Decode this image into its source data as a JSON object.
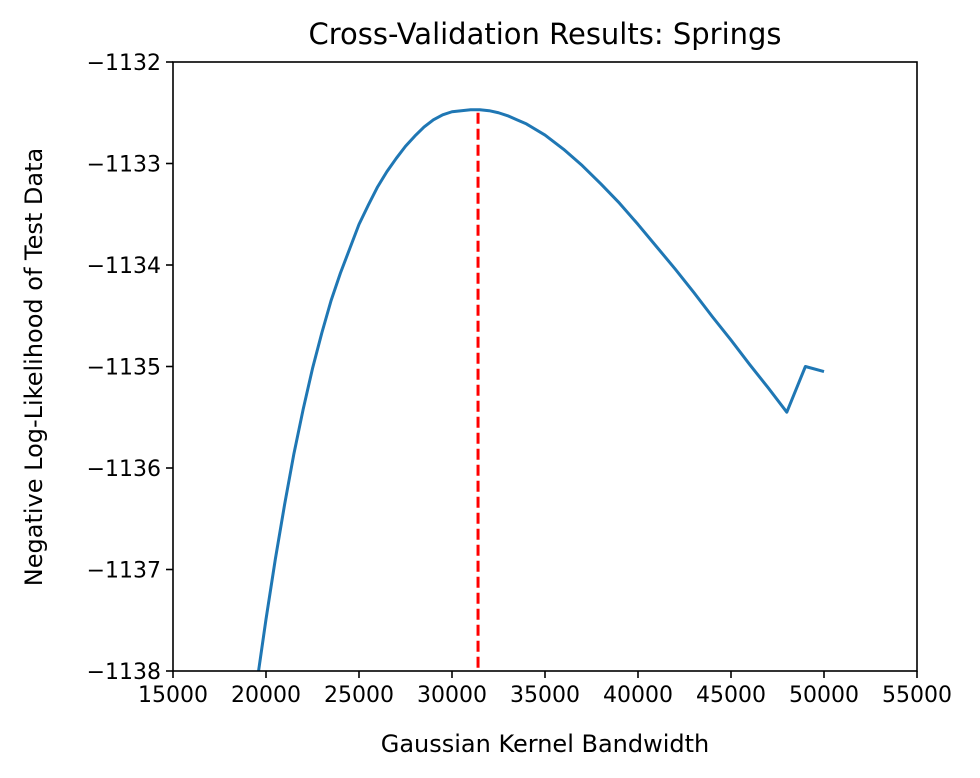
{
  "chart_data": {
    "type": "line",
    "title": "Cross-Validation Results: Springs",
    "xlabel": "Gaussian Kernel Bandwidth",
    "ylabel": "Negative Log-Likelihood of Test Data",
    "xlim": [
      15000,
      55000
    ],
    "ylim": [
      -1138,
      -1132
    ],
    "xticks": [
      15000,
      20000,
      25000,
      30000,
      35000,
      40000,
      45000,
      50000,
      55000
    ],
    "xtick_labels": [
      "15000",
      "20000",
      "25000",
      "30000",
      "35000",
      "40000",
      "45000",
      "50000",
      "55000"
    ],
    "yticks": [
      -1138,
      -1137,
      -1136,
      -1135,
      -1134,
      -1133,
      -1132
    ],
    "ytick_labels": [
      "−1138",
      "−1137",
      "−1136",
      "−1135",
      "−1134",
      "−1133",
      "−1132"
    ],
    "grid": false,
    "series": [
      {
        "color": "#1f77b4",
        "x": [
          19600,
          20000,
          20500,
          21000,
          21500,
          22000,
          22500,
          23000,
          23500,
          24000,
          24500,
          25000,
          25500,
          26000,
          26500,
          27000,
          27500,
          28000,
          28500,
          29000,
          29500,
          30000,
          30500,
          31000,
          31500,
          32000,
          32500,
          33000,
          33500,
          34000,
          35000,
          36000,
          37000,
          38000,
          39000,
          40000,
          41000,
          42000,
          43000,
          44000,
          45000,
          46000,
          47000,
          48000,
          49000,
          50000
        ],
        "y": [
          -1138.0,
          -1137.49,
          -1136.9,
          -1136.36,
          -1135.86,
          -1135.42,
          -1135.02,
          -1134.67,
          -1134.35,
          -1134.08,
          -1133.84,
          -1133.6,
          -1133.41,
          -1133.23,
          -1133.08,
          -1132.95,
          -1132.83,
          -1132.73,
          -1132.64,
          -1132.57,
          -1132.52,
          -1132.49,
          -1132.48,
          -1132.47,
          -1132.47,
          -1132.48,
          -1132.5,
          -1132.53,
          -1132.57,
          -1132.61,
          -1132.72,
          -1132.86,
          -1133.02,
          -1133.2,
          -1133.39,
          -1133.6,
          -1133.82,
          -1134.04,
          -1134.27,
          -1134.51,
          -1134.74,
          -1134.98,
          -1135.21,
          -1135.45,
          -1135.0,
          -1135.05
        ]
      }
    ],
    "vline": {
      "x": 31400,
      "color": "#ff0000",
      "style": "dashed"
    }
  }
}
